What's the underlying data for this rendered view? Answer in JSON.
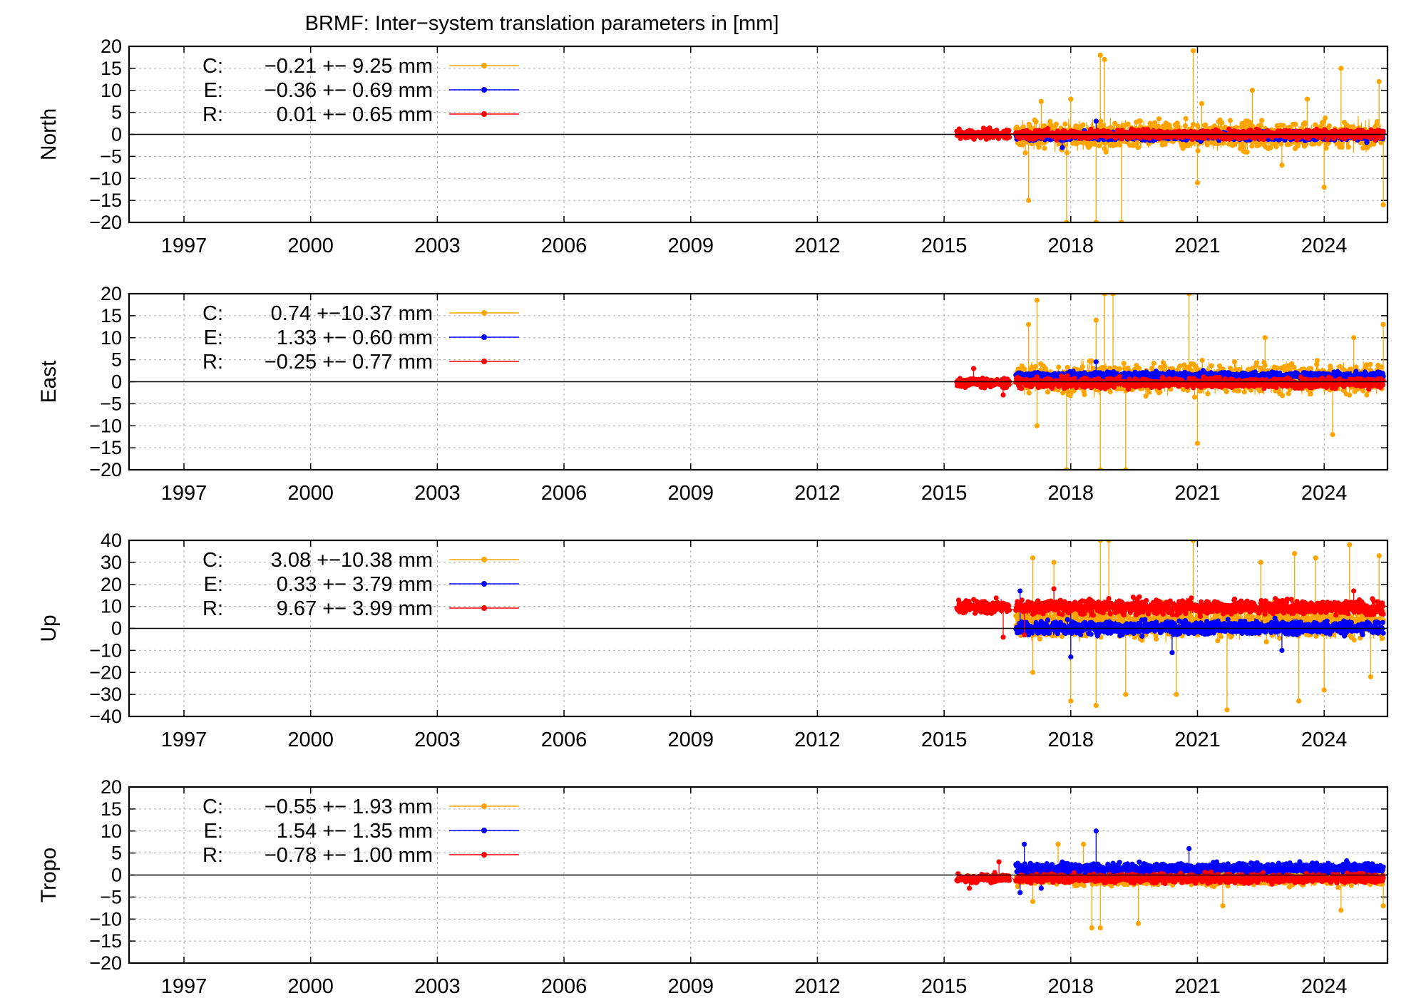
{
  "chart_data": {
    "type": "scatter",
    "title": "BRMF: Inter−system translation parameters in [mm]",
    "x_range": [
      1995.7,
      2025.5
    ],
    "x_ticks": [
      "1997",
      "2000",
      "2003",
      "2006",
      "2009",
      "2012",
      "2015",
      "2018",
      "2021",
      "2024"
    ],
    "colors": {
      "C": "#ffa500",
      "E": "#0000ff",
      "R": "#ff0000"
    },
    "panels": [
      {
        "ylabel": "North",
        "ylim": [
          -20,
          20
        ],
        "y_ticks": [
          "20",
          "15",
          "10",
          "5",
          "0",
          "−5",
          "−10",
          "−15",
          "−20"
        ],
        "legend": [
          {
            "key": "C",
            "label": "C:",
            "stat": "−0.21 +− 9.25 mm",
            "mean": -0.21,
            "std": 9.25
          },
          {
            "key": "E",
            "label": "E:",
            "stat": "−0.36 +− 0.69 mm",
            "mean": -0.36,
            "std": 0.69
          },
          {
            "key": "R",
            "label": "R:",
            "stat": "0.01 +− 0.65 mm",
            "mean": 0.01,
            "std": 0.65
          }
        ],
        "series": [
          {
            "name": "C",
            "start": 2016.7,
            "end": 2025.4,
            "mean": -0.21,
            "spread": 2.8,
            "pos_spikes": [
              [
                2017.3,
                7.5
              ],
              [
                2018.0,
                8
              ],
              [
                2018.7,
                18
              ],
              [
                2018.8,
                17
              ],
              [
                2020.9,
                19
              ],
              [
                2021.1,
                7
              ],
              [
                2022.3,
                10
              ],
              [
                2023.6,
                8
              ],
              [
                2024.4,
                15
              ],
              [
                2025.3,
                12
              ]
            ],
            "neg_spikes": [
              [
                2017.0,
                -15
              ],
              [
                2017.9,
                -20
              ],
              [
                2018.6,
                -20
              ],
              [
                2019.2,
                -20
              ],
              [
                2021.0,
                -11
              ],
              [
                2023.0,
                -7
              ],
              [
                2024.0,
                -12
              ],
              [
                2025.4,
                -16
              ]
            ]
          },
          {
            "name": "E",
            "start": 2016.7,
            "end": 2025.4,
            "mean": -0.36,
            "spread": 0.9,
            "pos_spikes": [
              [
                2018.6,
                3
              ]
            ],
            "neg_spikes": [
              [
                2017.8,
                -3
              ]
            ]
          },
          {
            "name": "R",
            "start": 2015.3,
            "end": 2025.4,
            "mean": 0.01,
            "spread": 0.9,
            "gap": [
              2016.55,
              2016.7
            ],
            "pos_spikes": [],
            "neg_spikes": []
          }
        ]
      },
      {
        "ylabel": "East",
        "ylim": [
          -20,
          20
        ],
        "y_ticks": [
          "20",
          "15",
          "10",
          "5",
          "0",
          "−5",
          "−10",
          "−15",
          "−20"
        ],
        "legend": [
          {
            "key": "C",
            "label": "C:",
            "stat": "0.74 +−10.37 mm",
            "mean": 0.74,
            "std": 10.37
          },
          {
            "key": "E",
            "label": "E:",
            "stat": "1.33 +− 0.60 mm",
            "mean": 1.33,
            "std": 0.6
          },
          {
            "key": "R",
            "label": "R:",
            "stat": "−0.25 +− 0.77 mm",
            "mean": -0.25,
            "std": 0.77
          }
        ],
        "series": [
          {
            "name": "C",
            "start": 2016.7,
            "end": 2025.4,
            "mean": 0.74,
            "spread": 3.0,
            "pos_spikes": [
              [
                2017.0,
                13
              ],
              [
                2017.2,
                18.5
              ],
              [
                2018.6,
                14
              ],
              [
                2018.8,
                20
              ],
              [
                2019.0,
                20
              ],
              [
                2020.8,
                20
              ],
              [
                2022.6,
                10
              ],
              [
                2024.7,
                10
              ],
              [
                2025.4,
                13
              ]
            ],
            "neg_spikes": [
              [
                2017.2,
                -10
              ],
              [
                2017.9,
                -20
              ],
              [
                2018.7,
                -20
              ],
              [
                2019.3,
                -20
              ],
              [
                2021.0,
                -14
              ],
              [
                2024.2,
                -12
              ]
            ]
          },
          {
            "name": "E",
            "start": 2016.7,
            "end": 2025.4,
            "mean": 1.33,
            "spread": 0.8,
            "pos_spikes": [
              [
                2018.6,
                4.5
              ]
            ],
            "neg_spikes": []
          },
          {
            "name": "R",
            "start": 2015.3,
            "end": 2025.4,
            "mean": -0.25,
            "spread": 1.0,
            "gap": [
              2016.55,
              2016.7
            ],
            "pos_spikes": [
              [
                2015.7,
                3
              ]
            ],
            "neg_spikes": [
              [
                2016.4,
                -3
              ]
            ]
          }
        ]
      },
      {
        "ylabel": "Up",
        "ylim": [
          -40,
          40
        ],
        "y_ticks": [
          "40",
          "30",
          "20",
          "10",
          "0",
          "−10",
          "−20",
          "−30",
          "−40"
        ],
        "legend": [
          {
            "key": "C",
            "label": "C:",
            "stat": "3.08 +−10.38 mm",
            "mean": 3.08,
            "std": 10.38
          },
          {
            "key": "E",
            "label": "E:",
            "stat": "0.33 +− 3.79 mm",
            "mean": 0.33,
            "std": 3.79
          },
          {
            "key": "R",
            "label": "R:",
            "stat": "9.67 +− 3.99 mm",
            "mean": 9.67,
            "std": 3.99
          }
        ],
        "series": [
          {
            "name": "C",
            "start": 2016.7,
            "end": 2025.4,
            "mean": 3.08,
            "spread": 6.5,
            "pos_spikes": [
              [
                2017.1,
                32
              ],
              [
                2017.6,
                30
              ],
              [
                2018.7,
                40
              ],
              [
                2018.9,
                40
              ],
              [
                2020.9,
                40
              ],
              [
                2022.5,
                30
              ],
              [
                2023.3,
                34
              ],
              [
                2023.8,
                32
              ],
              [
                2024.6,
                38
              ],
              [
                2025.3,
                33
              ]
            ],
            "neg_spikes": [
              [
                2017.1,
                -20
              ],
              [
                2018.0,
                -33
              ],
              [
                2018.6,
                -35
              ],
              [
                2019.3,
                -30
              ],
              [
                2020.5,
                -30
              ],
              [
                2021.7,
                -37
              ],
              [
                2023.4,
                -33
              ],
              [
                2024.0,
                -28
              ],
              [
                2025.1,
                -22
              ]
            ]
          },
          {
            "name": "E",
            "start": 2016.7,
            "end": 2025.4,
            "mean": 0.33,
            "spread": 2.8,
            "pos_spikes": [
              [
                2016.8,
                17
              ],
              [
                2018.0,
                8
              ]
            ],
            "neg_spikes": [
              [
                2018.0,
                -13
              ],
              [
                2020.4,
                -11
              ],
              [
                2023.0,
                -10
              ]
            ]
          },
          {
            "name": "R",
            "start": 2015.3,
            "end": 2025.4,
            "mean": 9.67,
            "spread": 2.9,
            "gap": [
              2016.55,
              2016.7
            ],
            "pos_spikes": [
              [
                2017.6,
                18
              ],
              [
                2024.7,
                17
              ]
            ],
            "neg_spikes": [
              [
                2016.4,
                -4
              ],
              [
                2016.9,
                -3
              ]
            ]
          }
        ]
      },
      {
        "ylabel": "Tropo",
        "ylim": [
          -20,
          20
        ],
        "y_ticks": [
          "20",
          "15",
          "10",
          "5",
          "0",
          "−5",
          "−10",
          "−15",
          "−20"
        ],
        "legend": [
          {
            "key": "C",
            "label": "C:",
            "stat": "−0.55 +− 1.93 mm",
            "mean": -0.55,
            "std": 1.93
          },
          {
            "key": "E",
            "label": "E:",
            "stat": "1.54 +− 1.35 mm",
            "mean": 1.54,
            "std": 1.35
          },
          {
            "key": "R",
            "label": "R:",
            "stat": "−0.78 +− 1.00 mm",
            "mean": -0.78,
            "std": 1.0
          }
        ],
        "series": [
          {
            "name": "C",
            "start": 2016.7,
            "end": 2025.4,
            "mean": -0.55,
            "spread": 1.6,
            "pos_spikes": [
              [
                2017.7,
                7
              ],
              [
                2018.3,
                7
              ]
            ],
            "neg_spikes": [
              [
                2017.1,
                -6
              ],
              [
                2018.5,
                -12
              ],
              [
                2018.7,
                -12
              ],
              [
                2019.6,
                -11
              ],
              [
                2021.6,
                -7
              ],
              [
                2024.4,
                -8
              ],
              [
                2025.4,
                -7
              ]
            ]
          },
          {
            "name": "E",
            "start": 2016.7,
            "end": 2025.4,
            "mean": 1.54,
            "spread": 1.1,
            "pos_spikes": [
              [
                2016.9,
                7
              ],
              [
                2018.6,
                10
              ],
              [
                2020.8,
                6
              ]
            ],
            "neg_spikes": [
              [
                2016.8,
                -4
              ],
              [
                2017.3,
                -3
              ]
            ]
          },
          {
            "name": "R",
            "start": 2015.3,
            "end": 2025.4,
            "mean": -0.78,
            "spread": 0.9,
            "gap": [
              2016.55,
              2016.7
            ],
            "pos_spikes": [
              [
                2016.3,
                3
              ]
            ],
            "neg_spikes": [
              [
                2015.6,
                -3
              ]
            ]
          }
        ]
      }
    ]
  }
}
